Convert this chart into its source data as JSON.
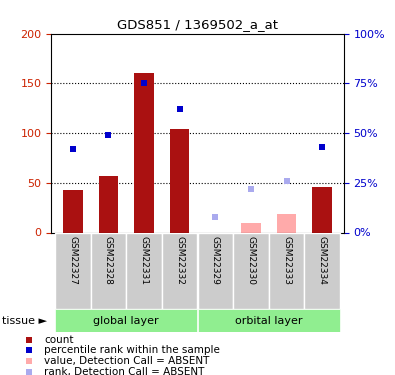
{
  "title": "GDS851 / 1369502_a_at",
  "samples": [
    "GSM22327",
    "GSM22328",
    "GSM22331",
    "GSM22332",
    "GSM22329",
    "GSM22330",
    "GSM22333",
    "GSM22334"
  ],
  "bar_values": [
    43,
    57,
    161,
    104,
    null,
    null,
    null,
    46
  ],
  "bar_values_absent": [
    null,
    null,
    null,
    null,
    null,
    10,
    19,
    null
  ],
  "rank_values_pct": [
    42,
    49,
    75,
    62,
    null,
    null,
    null,
    43
  ],
  "rank_values_absent_pct": [
    null,
    null,
    null,
    null,
    8,
    22,
    26,
    null
  ],
  "bar_color": "#AA1111",
  "bar_absent_color": "#FFAAAA",
  "rank_color": "#0000CC",
  "rank_absent_color": "#AAAAEE",
  "ylim_left": [
    0,
    200
  ],
  "ylim_right": [
    0,
    100
  ],
  "yticks_left": [
    0,
    50,
    100,
    150,
    200
  ],
  "yticks_right": [
    0,
    25,
    50,
    75,
    100
  ],
  "ytick_labels_left": [
    "0",
    "50",
    "100",
    "150",
    "200"
  ],
  "ytick_labels_right": [
    "0%",
    "25%",
    "50%",
    "75%",
    "100%"
  ],
  "group1_label": "global layer",
  "group1_indices": [
    0,
    1,
    2,
    3
  ],
  "group2_label": "orbital layer",
  "group2_indices": [
    4,
    5,
    6,
    7
  ],
  "group_color": "#90EE90",
  "tissue_label": "tissue",
  "bar_width": 0.55,
  "marker_size": 5,
  "background_color": "#FFFFFF",
  "axis_label_color_left": "#CC2200",
  "axis_label_color_right": "#0000CC",
  "legend_items": [
    {
      "color": "#AA1111",
      "label": "count"
    },
    {
      "color": "#0000CC",
      "label": "percentile rank within the sample"
    },
    {
      "color": "#FFAAAA",
      "label": "value, Detection Call = ABSENT"
    },
    {
      "color": "#AAAAEE",
      "label": "rank, Detection Call = ABSENT"
    }
  ]
}
